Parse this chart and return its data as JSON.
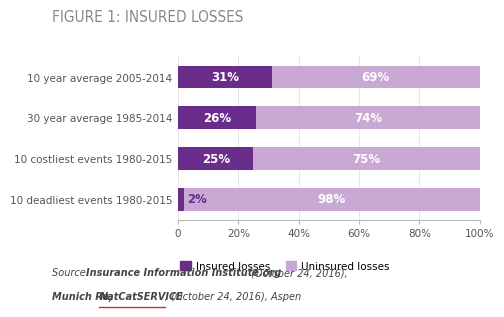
{
  "title": "FIGURE 1: INSURED LOSSES",
  "categories": [
    "10 year average 2005-2014",
    "30 year average 1985-2014",
    "10 costliest events 1980-2015",
    "10 deadliest events 1980-2015"
  ],
  "insured": [
    31,
    26,
    25,
    2
  ],
  "uninsured": [
    69,
    74,
    75,
    98
  ],
  "insured_color": "#6b2d8b",
  "uninsured_color": "#c9a8d4",
  "bar_height": 0.55,
  "xlabel_ticks": [
    0,
    20,
    40,
    60,
    80,
    100
  ],
  "xlabel_labels": [
    "0",
    "20%",
    "40%",
    "60%",
    "80%",
    "100%"
  ],
  "legend_insured": "Insured losses",
  "legend_uninsured": "Uninsured losses",
  "bg_color": "#ffffff",
  "title_color": "#888888",
  "category_color": "#555555",
  "label_color_white": "#ffffff",
  "label_color_dark": "#6b2d8b",
  "source_text_color": "#444444",
  "natcat_underline_color": "#c0392b"
}
